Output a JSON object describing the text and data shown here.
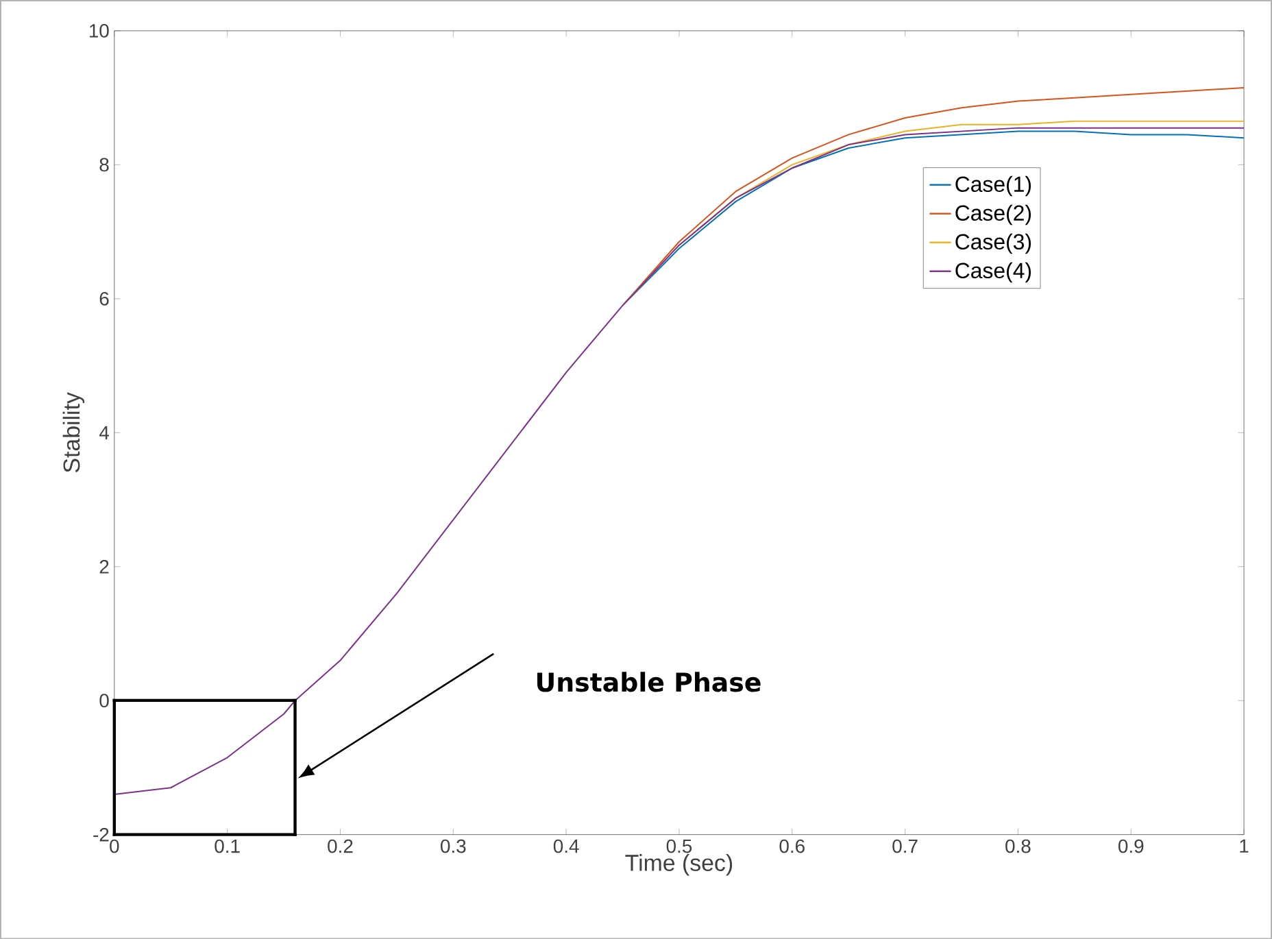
{
  "chart_data": {
    "type": "line",
    "xlabel": "Time (sec)",
    "ylabel": "Stability",
    "x": [
      0,
      0.05,
      0.1,
      0.15,
      0.16,
      0.2,
      0.25,
      0.3,
      0.35,
      0.4,
      0.45,
      0.5,
      0.55,
      0.6,
      0.65,
      0.7,
      0.75,
      0.8,
      0.85,
      0.9,
      0.95,
      1
    ],
    "series": [
      {
        "name": "Case(1)",
        "color": "#0072bd",
        "values": [
          null,
          null,
          null,
          null,
          null,
          null,
          null,
          null,
          null,
          null,
          5.9,
          6.75,
          7.45,
          7.95,
          8.25,
          8.4,
          8.45,
          8.5,
          8.5,
          8.45,
          8.45,
          8.4
        ]
      },
      {
        "name": "Case(2)",
        "color": "#d95319",
        "values": [
          null,
          null,
          null,
          null,
          null,
          null,
          null,
          null,
          null,
          null,
          5.9,
          6.85,
          7.6,
          8.1,
          8.45,
          8.7,
          8.85,
          8.95,
          9.0,
          9.05,
          9.1,
          9.15
        ]
      },
      {
        "name": "Case(3)",
        "color": "#edb120",
        "values": [
          null,
          null,
          null,
          null,
          null,
          null,
          null,
          null,
          null,
          null,
          5.9,
          6.8,
          7.5,
          8.0,
          8.3,
          8.5,
          8.6,
          8.6,
          8.65,
          8.65,
          8.65,
          8.65
        ]
      },
      {
        "name": "Case(4)",
        "color": "#7e2f8e",
        "values": [
          -1.4,
          -1.3,
          -0.85,
          -0.2,
          0,
          0.6,
          1.6,
          2.7,
          3.8,
          4.9,
          5.9,
          6.8,
          7.5,
          7.95,
          8.3,
          8.45,
          8.5,
          8.55,
          8.55,
          8.55,
          8.55,
          8.55
        ]
      }
    ],
    "xlim": [
      0,
      1
    ],
    "ylim": [
      -2,
      10
    ],
    "xticks": [
      0,
      0.1,
      0.2,
      0.3,
      0.4,
      0.5,
      0.6,
      0.7,
      0.8,
      0.9,
      1
    ],
    "yticks": [
      -2,
      0,
      2,
      4,
      6,
      8,
      10
    ],
    "annotations": [
      "Unstable Phase"
    ],
    "grid": false,
    "legend": "top right"
  }
}
